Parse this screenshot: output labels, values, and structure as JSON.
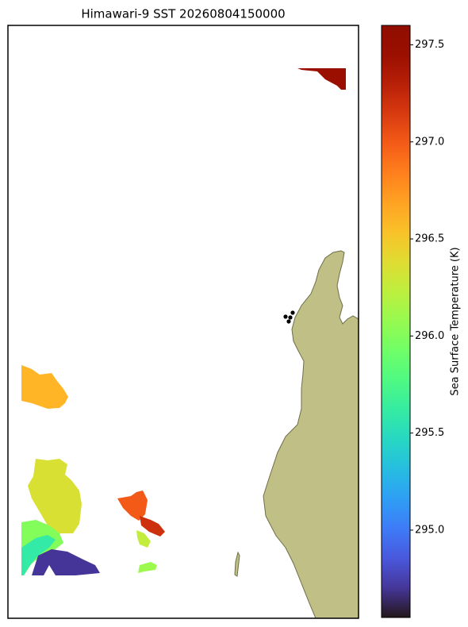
{
  "chart_data": {
    "type": "map",
    "title": "Himawari-9 SST 20260804150000",
    "colorbar_label": "Sea Surface Temperature (K)",
    "clim": [
      294.55,
      297.6
    ],
    "colorbar_ticks": [
      {
        "value": 295,
        "label": "295.0"
      },
      295.5,
      {
        "value": 296,
        "label": "296.0"
      },
      296.5,
      {
        "value": 297,
        "label": "297.0"
      },
      297.5
    ],
    "patch_values": [
      297.45,
      296.6,
      296.35,
      296.0,
      295.6,
      294.7,
      297.0,
      297.2,
      296.25,
      296.1
    ],
    "land_color": "#bfbf86"
  }
}
